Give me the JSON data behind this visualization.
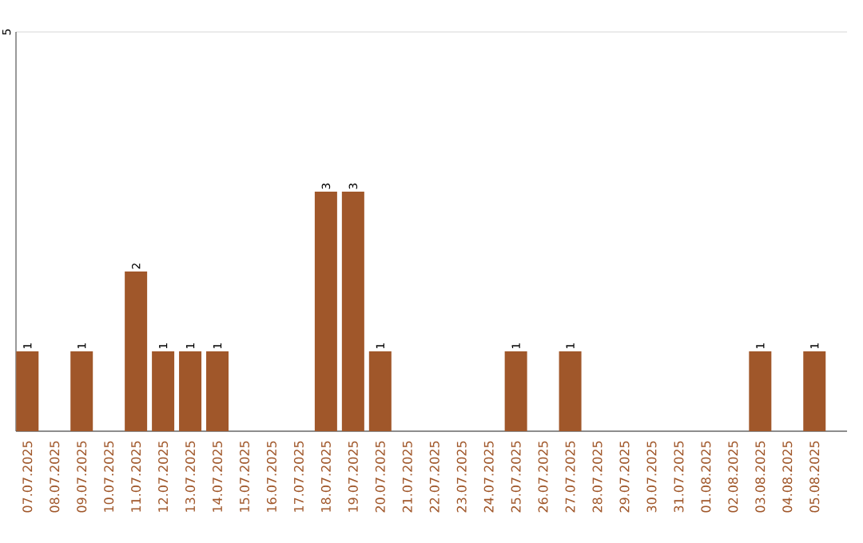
{
  "chart_data": {
    "type": "bar",
    "categories": [
      "07.07.2025",
      "08.07.2025",
      "09.07.2025",
      "10.07.2025",
      "11.07.2025",
      "12.07.2025",
      "13.07.2025",
      "14.07.2025",
      "15.07.2025",
      "16.07.2025",
      "17.07.2025",
      "18.07.2025",
      "19.07.2025",
      "20.07.2025",
      "21.07.2025",
      "22.07.2025",
      "23.07.2025",
      "24.07.2025",
      "25.07.2025",
      "26.07.2025",
      "27.07.2025",
      "28.07.2025",
      "29.07.2025",
      "30.07.2025",
      "31.07.2025",
      "01.08.2025",
      "02.08.2025",
      "03.08.2025",
      "04.08.2025",
      "05.08.2025"
    ],
    "values": [
      1,
      0,
      1,
      0,
      2,
      1,
      1,
      1,
      0,
      0,
      0,
      3,
      3,
      1,
      0,
      0,
      0,
      0,
      1,
      0,
      1,
      0,
      0,
      0,
      0,
      0,
      0,
      1,
      0,
      1
    ],
    "value_labels": [
      "1",
      null,
      "1",
      null,
      "2",
      "1",
      "1",
      "1",
      null,
      null,
      null,
      "3",
      "3",
      "1",
      null,
      null,
      null,
      null,
      "1",
      null,
      "1",
      null,
      null,
      null,
      null,
      null,
      null,
      "1",
      null,
      "1"
    ],
    "color": "#a0572a",
    "ylim": [
      0,
      5
    ],
    "yticks": [
      {
        "value": 0,
        "label": null
      },
      5
    ],
    "grid": "y"
  }
}
